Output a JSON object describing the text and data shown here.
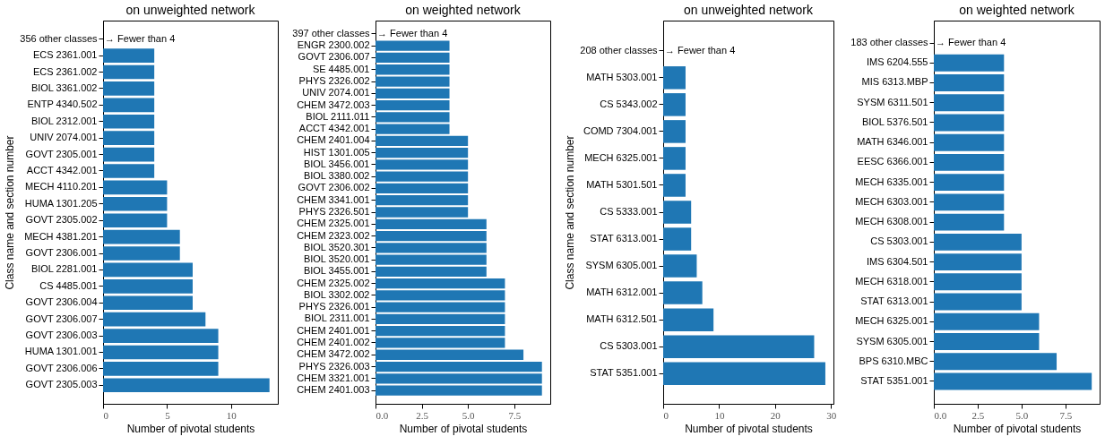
{
  "chart_data": [
    {
      "type": "bar",
      "orientation": "horizontal",
      "title": "on unweighted network",
      "xlabel": "Number of pivotal students",
      "ylabel": "Class name and section number",
      "color": "#1f77b4",
      "grid": false,
      "categories": [
        "356 other classes",
        "ECS 2361.001",
        "ECS 2361.002",
        "BIOL 3361.002",
        "ENTP 4340.502",
        "BIOL 2312.001",
        "UNIV 2074.001",
        "GOVT 2305.001",
        "ACCT 4342.001",
        "MECH 4110.201",
        "HUMA 1301.205",
        "GOVT 2305.002",
        "MECH 4381.201",
        "GOVT 2306.001",
        "BIOL 2281.001",
        "CS 4485.001",
        "GOVT 2306.004",
        "GOVT 2306.007",
        "GOVT 2306.003",
        "HUMA 1301.001",
        "GOVT 2306.006",
        "GOVT 2305.003"
      ],
      "values": [
        null,
        4,
        4,
        4,
        4,
        4,
        4,
        4,
        4,
        5,
        5,
        5,
        6,
        6,
        7,
        7,
        7,
        8,
        9,
        9,
        9,
        13
      ],
      "xlim": [
        0,
        13.65
      ],
      "xticks": [
        0,
        5,
        10
      ],
      "annotations": [
        "→ Fewer than 4"
      ]
    },
    {
      "type": "bar",
      "orientation": "horizontal",
      "title": "on weighted network",
      "xlabel": "Number of pivotal students",
      "color": "#1f77b4",
      "grid": false,
      "categories": [
        "397 other classes",
        "ENGR 2300.002",
        "GOVT 2306.007",
        "SE 4485.001",
        "PHYS 2326.002",
        "UNIV 2074.001",
        "CHEM 3472.003",
        "BIOL 2111.011",
        "ACCT 4342.001",
        "CHEM 2401.004",
        "HIST 1301.005",
        "BIOL 3456.001",
        "BIOL 3380.002",
        "GOVT 2306.002",
        "CHEM 3341.001",
        "PHYS 2326.501",
        "CHEM 2325.001",
        "CHEM 2323.002",
        "BIOL 3520.301",
        "BIOL 3520.001",
        "BIOL 3455.001",
        "CHEM 2325.002",
        "BIOL 3302.002",
        "PHYS 2326.001",
        "BIOL 2311.001",
        "CHEM 2401.001",
        "CHEM 2401.002",
        "CHEM 3472.002",
        "PHYS 2326.003",
        "CHEM 3321.001",
        "CHEM 2401.003"
      ],
      "values": [
        null,
        4,
        4,
        4,
        4,
        4,
        4,
        4,
        4,
        5,
        5,
        5,
        5,
        5,
        5,
        5,
        6,
        6,
        6,
        6,
        6,
        7,
        7,
        7,
        7,
        7,
        7,
        8,
        9,
        9,
        9
      ],
      "xlim": [
        0,
        9.45
      ],
      "xticks": [
        {
          "value": 0,
          "label": "0.0"
        },
        {
          "value": 2.5,
          "label": "2.5"
        },
        {
          "value": 5,
          "label": "5.0"
        },
        {
          "value": 7.5,
          "label": "7.5"
        }
      ],
      "annotations": [
        "→ Fewer than 4"
      ]
    },
    {
      "type": "bar",
      "orientation": "horizontal",
      "title": "on unweighted network",
      "xlabel": "Number of pivotal students",
      "ylabel": "Class name and section number",
      "color": "#1f77b4",
      "grid": false,
      "categories": [
        "208 other classes",
        "MATH 5303.001",
        "CS 5343.002",
        "COMD 7304.001",
        "MECH 6325.001",
        "MATH 5301.501",
        "CS 5333.001",
        "STAT 6313.001",
        "SYSM 6305.001",
        "MATH 6312.001",
        "MATH 6312.501",
        "CS 5303.001",
        "STAT 5351.001"
      ],
      "values": [
        null,
        4,
        4,
        4,
        4,
        4,
        5,
        5,
        6,
        7,
        9,
        27,
        29
      ],
      "xlim": [
        0,
        30.45
      ],
      "xticks": [
        0,
        10,
        20,
        30
      ],
      "annotations": [
        "→ Fewer than 4"
      ]
    },
    {
      "type": "bar",
      "orientation": "horizontal",
      "title": "on weighted network",
      "xlabel": "Number of pivotal students",
      "color": "#1f77b4",
      "grid": false,
      "categories": [
        "183 other classes",
        "IMS 6204.555",
        "MIS 6313.MBP",
        "SYSM 6311.501",
        "BIOL 5376.501",
        "MATH 6346.001",
        "EESC 6366.001",
        "MECH 6335.001",
        "MECH 6303.001",
        "MECH 6308.001",
        "CS 5303.001",
        "IMS 6304.501",
        "MECH 6318.001",
        "STAT 6313.001",
        "MECH 6325.001",
        "SYSM 6305.001",
        "BPS 6310.MBC",
        "STAT 5351.001"
      ],
      "values": [
        null,
        4,
        4,
        4,
        4,
        4,
        4,
        4,
        4,
        4,
        5,
        5,
        5,
        5,
        6,
        6,
        7,
        9
      ],
      "xlim": [
        0,
        9.45
      ],
      "xticks": [
        {
          "value": 0,
          "label": "0.0"
        },
        {
          "value": 2.5,
          "label": "2.5"
        },
        {
          "value": 5,
          "label": "5.0"
        },
        {
          "value": 7.5,
          "label": "7.5"
        }
      ],
      "annotations": [
        "→ Fewer than 4"
      ]
    }
  ]
}
